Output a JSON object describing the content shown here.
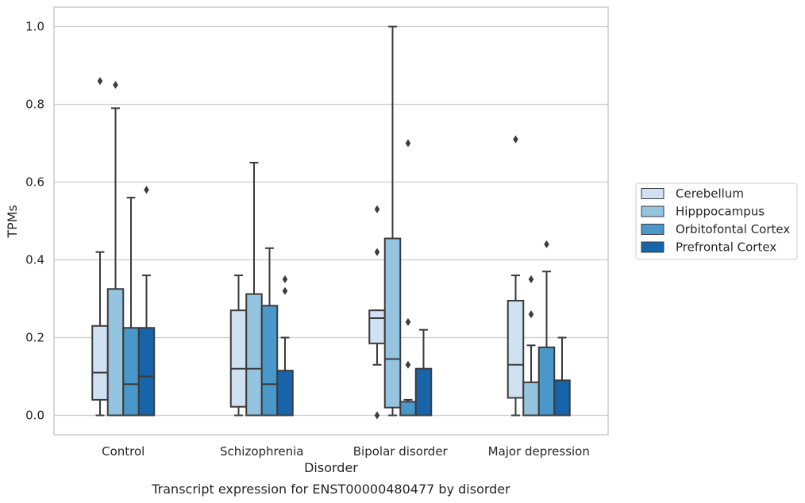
{
  "chart_data": {
    "type": "box",
    "caption": "Transcript expression for ENST00000480477 by disorder",
    "xlabel": "Disorder",
    "ylabel": "TPMs",
    "ylim": [
      -0.05,
      1.05
    ],
    "yticks": [
      "0.0",
      "0.2",
      "0.4",
      "0.6",
      "0.8",
      "1.0"
    ],
    "grid": true,
    "legend_position": "right",
    "categories": [
      "Control",
      "Schizophrenia",
      "Bipolar disorder",
      "Major depression"
    ],
    "series": [
      {
        "name": "Cerebellum",
        "color": "#d0e1f2",
        "boxes": [
          {
            "whisker_low": 0.0,
            "q1": 0.04,
            "median": 0.11,
            "q3": 0.23,
            "whisker_high": 0.42,
            "outliers": [
              0.86
            ]
          },
          {
            "whisker_low": 0.0,
            "q1": 0.022,
            "median": 0.12,
            "q3": 0.27,
            "whisker_high": 0.36,
            "outliers": []
          },
          {
            "whisker_low": 0.13,
            "q1": 0.185,
            "median": 0.25,
            "q3": 0.27,
            "whisker_high": 0.27,
            "outliers": [
              0.53,
              0.42,
              0.0
            ]
          },
          {
            "whisker_low": 0.0,
            "q1": 0.045,
            "median": 0.13,
            "q3": 0.295,
            "whisker_high": 0.36,
            "outliers": [
              0.71
            ]
          }
        ]
      },
      {
        "name": "Hipppocampus",
        "color": "#94c4df",
        "boxes": [
          {
            "whisker_low": 0.0,
            "q1": 0.0,
            "median": 0.0,
            "q3": 0.325,
            "whisker_high": 0.79,
            "outliers": [
              0.85
            ]
          },
          {
            "whisker_low": 0.0,
            "q1": 0.0,
            "median": 0.12,
            "q3": 0.312,
            "whisker_high": 0.65,
            "outliers": []
          },
          {
            "whisker_low": 0.0,
            "q1": 0.02,
            "median": 0.145,
            "q3": 0.455,
            "whisker_high": 1.0,
            "outliers": []
          },
          {
            "whisker_low": 0.0,
            "q1": 0.0,
            "median": 0.0,
            "q3": 0.085,
            "whisker_high": 0.18,
            "outliers": [
              0.35,
              0.26
            ]
          }
        ]
      },
      {
        "name": "Orbitofontal Cortex",
        "color": "#4a98c9",
        "boxes": [
          {
            "whisker_low": 0.0,
            "q1": 0.0,
            "median": 0.08,
            "q3": 0.225,
            "whisker_high": 0.56,
            "outliers": []
          },
          {
            "whisker_low": 0.0,
            "q1": 0.0,
            "median": 0.08,
            "q3": 0.282,
            "whisker_high": 0.43,
            "outliers": []
          },
          {
            "whisker_low": 0.0,
            "q1": 0.0,
            "median": 0.0,
            "q3": 0.035,
            "whisker_high": 0.04,
            "outliers": [
              0.7,
              0.24,
              0.13
            ]
          },
          {
            "whisker_low": 0.0,
            "q1": 0.0,
            "median": 0.0,
            "q3": 0.175,
            "whisker_high": 0.37,
            "outliers": [
              0.44
            ]
          }
        ]
      },
      {
        "name": "Prefrontal Cortex",
        "color": "#1764ab",
        "boxes": [
          {
            "whisker_low": 0.0,
            "q1": 0.0,
            "median": 0.1,
            "q3": 0.225,
            "whisker_high": 0.36,
            "outliers": [
              0.58
            ]
          },
          {
            "whisker_low": 0.0,
            "q1": 0.0,
            "median": 0.0,
            "q3": 0.115,
            "whisker_high": 0.2,
            "outliers": [
              0.35,
              0.32
            ]
          },
          {
            "whisker_low": 0.0,
            "q1": 0.0,
            "median": 0.0,
            "q3": 0.12,
            "whisker_high": 0.22,
            "outliers": []
          },
          {
            "whisker_low": 0.0,
            "q1": 0.0,
            "median": 0.0,
            "q3": 0.09,
            "whisker_high": 0.2,
            "outliers": []
          }
        ]
      }
    ]
  }
}
